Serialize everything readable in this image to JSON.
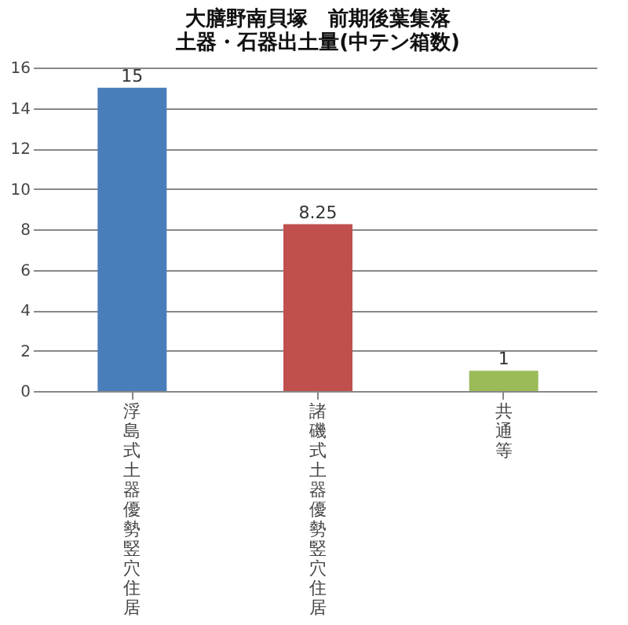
{
  "chart_data": {
    "type": "bar",
    "title": [
      "大膳野南貝塚　前期後葉集落",
      "土器・石器出土量(中テン箱数)"
    ],
    "categories": [
      "浮島式土器優勢竪穴住居",
      "諸磯式土器優勢竪穴住居",
      "共通等"
    ],
    "values": [
      15,
      8.25,
      1
    ],
    "colors": [
      "#4a7ebb",
      "#c0504d",
      "#9bbb59"
    ],
    "ylim": [
      0,
      16
    ],
    "yticks": [
      0,
      2,
      4,
      6,
      8,
      10,
      12,
      14,
      16
    ],
    "grid": "y",
    "data_labels": true
  }
}
